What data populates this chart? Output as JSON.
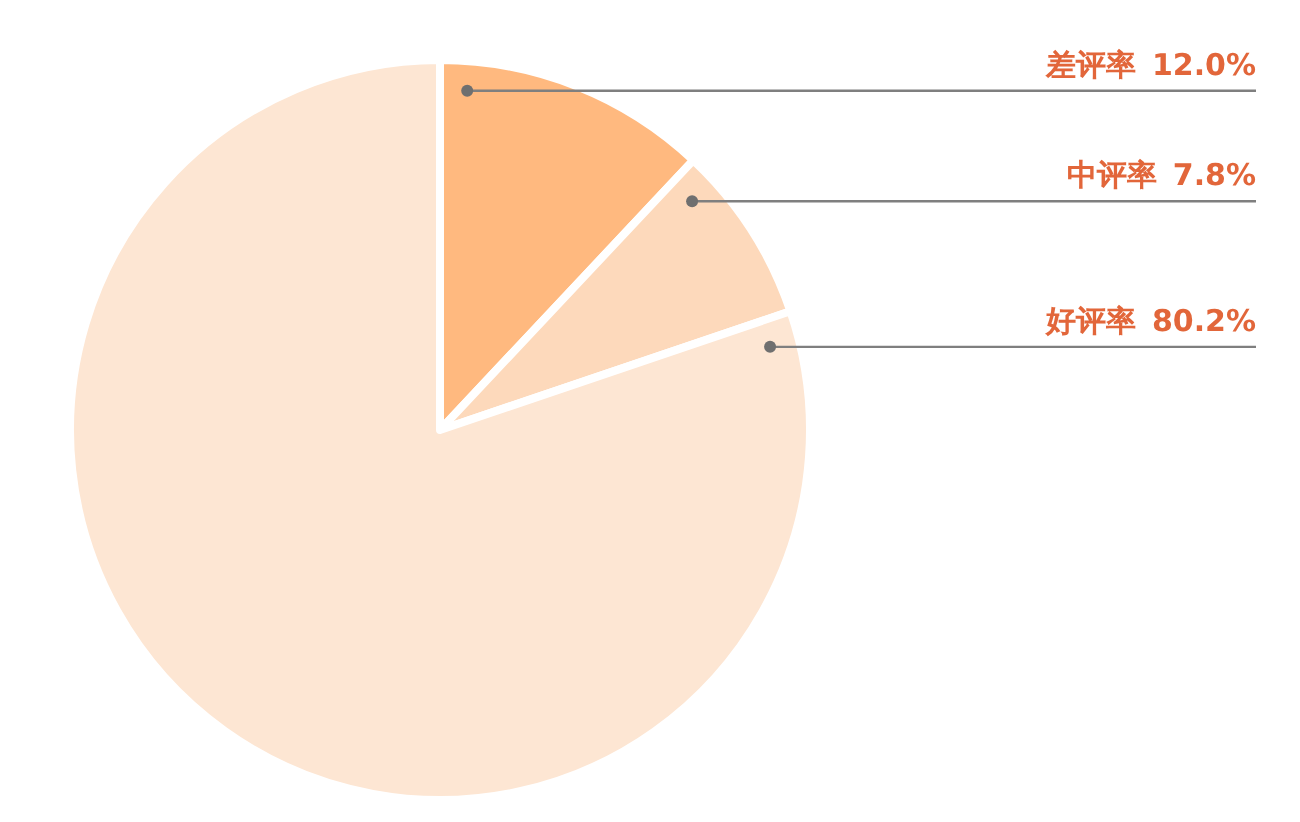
{
  "chart_data": {
    "type": "pie",
    "categories": [
      "差评率",
      "中评率",
      "好评率"
    ],
    "values": [
      12.0,
      7.8,
      80.2
    ],
    "value_labels": [
      "12.0%",
      "7.8%",
      "80.2%"
    ],
    "colors": [
      "#ffb97f",
      "#fdd9bb",
      "#fde6d3"
    ]
  }
}
